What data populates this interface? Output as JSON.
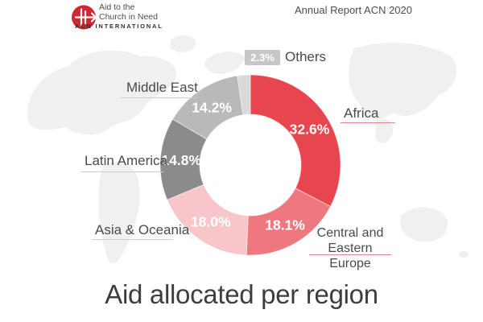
{
  "header": {
    "logo": {
      "name_line1": "Aid to the",
      "name_line2": "Church in Need",
      "org": "ACN INTERNATIONAL"
    },
    "report_label": "Annual Report ACN 2020"
  },
  "title": "Aid allocated per region",
  "chart_data": {
    "type": "pie",
    "subtype": "donut",
    "title": "Aid allocated per region",
    "unit": "%",
    "start_angle_deg": 0,
    "direction": "clockwise",
    "series": [
      {
        "label": "Africa",
        "value": 32.6,
        "display": "32.6%",
        "color": "#e8464e"
      },
      {
        "label": "Central and Eastern Europe",
        "value": 18.1,
        "display": "18.1%",
        "color": "#ee7880"
      },
      {
        "label": "Asia & Oceania",
        "value": 18.0,
        "display": "18.0%",
        "color": "#f7c5ca"
      },
      {
        "label": "Latin America",
        "value": 14.8,
        "display": "14.8%",
        "color": "#8b8b8b"
      },
      {
        "label": "Middle East",
        "value": 14.2,
        "display": "14.2%",
        "color": "#b9b9b9"
      },
      {
        "label": "Others",
        "value": 2.3,
        "display": "2.3%",
        "color": "#d9d9d9"
      }
    ]
  },
  "colors": {
    "brand_red": "#d22731",
    "label_text": "#4a4a4a",
    "underline_red": "#e2848b",
    "underline_gray": "#cdcdcd",
    "badge_bg": "#c6c6c6",
    "map_gray": "#f0f0f0"
  }
}
